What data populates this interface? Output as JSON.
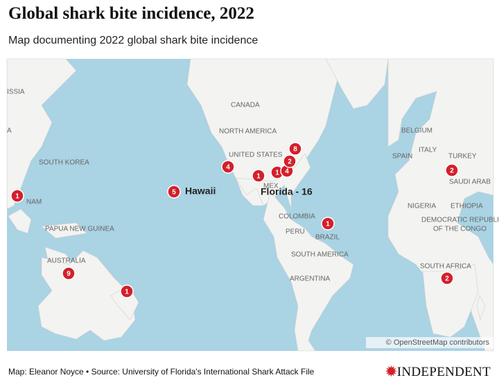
{
  "header": {
    "title": "Global shark bite incidence, 2022",
    "subtitle": "Map documenting 2022 global shark bite incidence"
  },
  "map": {
    "labels": [
      "ISSIA",
      "A",
      "SOUTH KOREA",
      "NAM",
      "PAPUA NEW GUINEA",
      "AUSTRALIA",
      "CANADA",
      "NORTH AMERICA",
      "UNITED STATES",
      "MEX",
      "COLOMBIA",
      "PERU",
      "BRAZIL",
      "SOUTH AMERICA",
      "ARGENTINA",
      "BELGIUM",
      "ITALY",
      "SPAIN",
      "TURKEY",
      "SAUDI ARAB",
      "NIGERIA",
      "ETHIOPIA",
      "DEMOCRATIC REPUBLIC",
      "OF THE CONGO",
      "SOUTH AFRICA"
    ],
    "markers": [
      1,
      5,
      4,
      1,
      1,
      4,
      8,
      2,
      1,
      2,
      2,
      9,
      1
    ],
    "callouts": [
      "Hawaii",
      "Florida - 16"
    ],
    "attribution": "© OpenStreetMap contributors"
  },
  "footer": {
    "credit": "Map: Eleanor Noyce • Source: University of Florida's International Shark Attack File",
    "logo": "INDEPENDENT"
  }
}
